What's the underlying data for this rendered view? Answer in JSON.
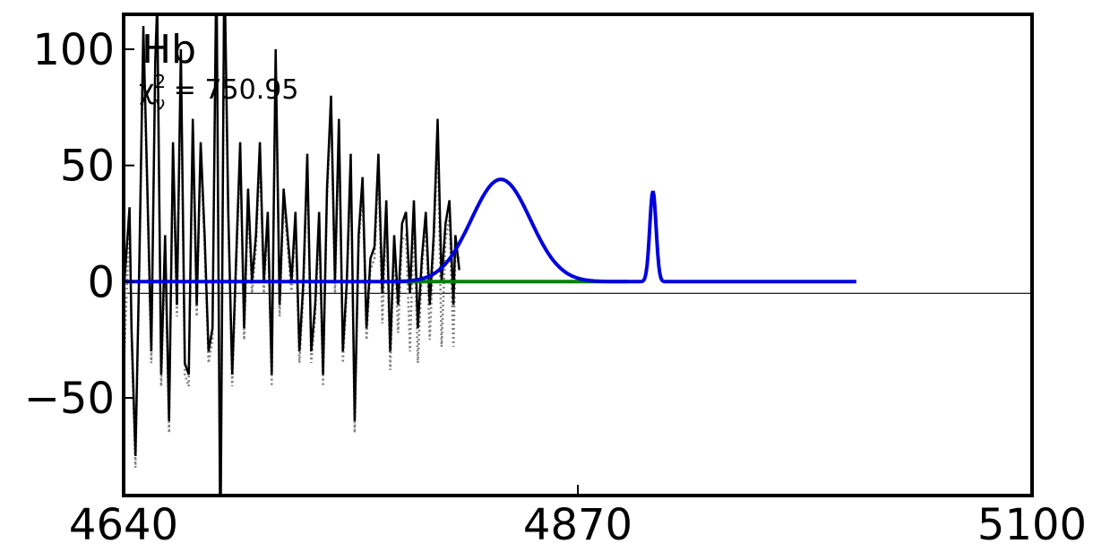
{
  "chart_data": {
    "type": "line",
    "title": "",
    "xlabel": "",
    "ylabel": "",
    "xlim": [
      4640,
      5100
    ],
    "ylim": [
      -92,
      115
    ],
    "xticks": [
      4640,
      4870,
      5100
    ],
    "xtick_labels": [
      "4640",
      "4870",
      "5100"
    ],
    "yticks": [
      -50,
      0,
      50,
      100
    ],
    "ytick_labels": [
      "−50",
      "0",
      "50",
      "100"
    ],
    "line_label": "Hb",
    "chi_label_symbol": "χ",
    "chi_label_sup": "2",
    "chi_label_sub": "ν",
    "chi_label_value": " = 750.95",
    "zero_line_y": -5,
    "grid": false,
    "colors": {
      "data": "#000000",
      "model_residual": "#808080",
      "continuum": "#008000",
      "fit": "#0000dd",
      "zero_line": "#000000"
    },
    "series": [
      {
        "key": "observed_flux",
        "x": [
          4640,
          4643,
          4644,
          4646,
          4648,
          4650,
          4652,
          4654,
          4656,
          4657,
          4659,
          4661,
          4663,
          4665,
          4667,
          4669,
          4671,
          4673,
          4675,
          4677,
          4679,
          4681,
          4683,
          4685,
          4687,
          4689,
          4691,
          4693,
          4695,
          4697,
          4699,
          4701,
          4703,
          4705,
          4707,
          4709,
          4711,
          4713,
          4715,
          4717,
          4719,
          4721,
          4723,
          4725,
          4727,
          4729,
          4731,
          4733,
          4735,
          4737,
          4739,
          4741,
          4743,
          4745,
          4747,
          4749,
          4751,
          4753,
          4755,
          4757,
          4759,
          4761,
          4763,
          4765,
          4767,
          4769,
          4771,
          4773,
          4775,
          4777,
          4779,
          4781,
          4783,
          4785,
          4787,
          4789,
          4791,
          4793,
          4795,
          4797,
          4799,
          4801,
          4803,
          4805,
          4807,
          4808,
          4810
        ],
        "y": [
          -5,
          32,
          -20,
          -75,
          10,
          110,
          40,
          -30,
          95,
          120,
          -40,
          20,
          -60,
          60,
          -10,
          100,
          -35,
          -40,
          70,
          -10,
          60,
          20,
          -30,
          -20,
          140,
          -120,
          140,
          30,
          -40,
          10,
          60,
          -20,
          40,
          0,
          20,
          60,
          0,
          30,
          -40,
          100,
          -10,
          40,
          20,
          0,
          30,
          -30,
          0,
          55,
          -30,
          -10,
          30,
          -40,
          40,
          80,
          0,
          70,
          -30,
          0,
          55,
          -60,
          20,
          45,
          -20,
          10,
          15,
          55,
          -5,
          35,
          -30,
          20,
          -10,
          25,
          30,
          -5,
          35,
          -20,
          10,
          30,
          -10,
          20,
          70,
          0,
          25,
          35,
          -10,
          20,
          5
        ]
      },
      {
        "key": "fit_residual",
        "x": [
          4640,
          4643,
          4644,
          4646,
          4648,
          4650,
          4652,
          4654,
          4656,
          4657,
          4659,
          4661,
          4663,
          4665,
          4667,
          4669,
          4671,
          4673,
          4675,
          4677,
          4679,
          4681,
          4683,
          4685,
          4687,
          4689,
          4691,
          4693,
          4695,
          4697,
          4699,
          4701,
          4703,
          4705,
          4707,
          4709,
          4711,
          4713,
          4715,
          4717,
          4719,
          4721,
          4723,
          4725,
          4727,
          4729,
          4731,
          4733,
          4735,
          4737,
          4739,
          4741,
          4743,
          4745,
          4747,
          4749,
          4751,
          4753,
          4755,
          4757,
          4759,
          4761,
          4763,
          4765,
          4767,
          4769,
          4771,
          4773,
          4775,
          4777,
          4779,
          4781,
          4783,
          4785,
          4787,
          4789,
          4791,
          4793,
          4795,
          4797,
          4799,
          4801,
          4803,
          4805,
          4807,
          4808,
          4810
        ],
        "y": [
          -40,
          28,
          -25,
          -80,
          5,
          105,
          35,
          -35,
          90,
          115,
          -45,
          15,
          -65,
          55,
          -15,
          95,
          -40,
          -45,
          65,
          -15,
          55,
          15,
          -35,
          -25,
          135,
          -125,
          135,
          25,
          -45,
          5,
          55,
          -25,
          35,
          -5,
          15,
          55,
          -5,
          25,
          -45,
          95,
          -15,
          35,
          15,
          -5,
          25,
          -35,
          -5,
          50,
          -35,
          -15,
          25,
          -45,
          35,
          75,
          -5,
          65,
          -35,
          -5,
          50,
          -65,
          15,
          40,
          -25,
          5,
          10,
          48,
          -18,
          30,
          -38,
          15,
          -22,
          18,
          20,
          -30,
          28,
          -35,
          5,
          25,
          -25,
          15,
          62,
          -28,
          18,
          28,
          -28,
          12,
          10
        ]
      },
      {
        "key": "continuum",
        "x": [
          4780,
          4895
        ],
        "y": [
          0,
          0
        ]
      },
      {
        "key": "total_fit",
        "broad": {
          "center": 4831,
          "sigma": 15,
          "amplitude": 44
        },
        "narrow": {
          "center": 4908,
          "sigma": 1.6,
          "amplitude": 39
        },
        "xrange": [
          4640,
          5011
        ]
      }
    ]
  }
}
